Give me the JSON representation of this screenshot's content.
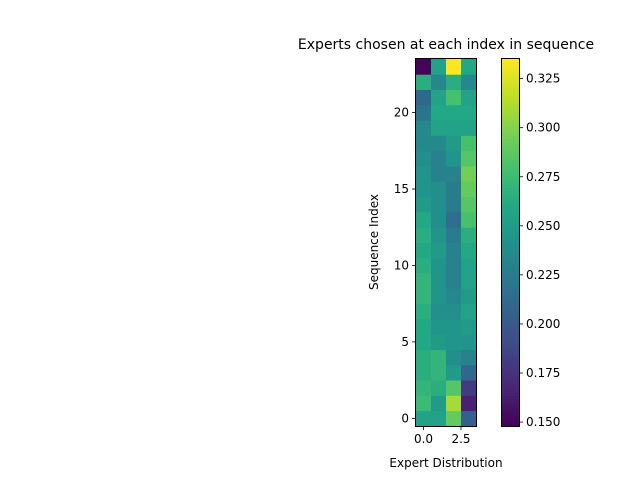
{
  "chart_data": {
    "type": "heatmap",
    "title": "Experts chosen at each index in sequence",
    "xlabel": "Expert Distribution",
    "ylabel": "Sequence Index",
    "colormap": "viridis",
    "vmin": 0.148,
    "vmax": 0.335,
    "xlim": [
      -0.5,
      3.5
    ],
    "ylim": [
      23.5,
      -0.5
    ],
    "x_ticks": [
      0.0,
      2.5
    ],
    "x_tick_labels": [
      "0.0",
      "2.5"
    ],
    "y_ticks": [
      0,
      5,
      10,
      15,
      20
    ],
    "y_tick_labels": [
      "0",
      "5",
      "10",
      "15",
      "20"
    ],
    "colorbar_ticks": [
      0.15,
      0.175,
      0.2,
      0.225,
      0.25,
      0.275,
      0.3,
      0.325
    ],
    "colorbar_tick_labels": [
      "0.150",
      "0.175",
      "0.200",
      "0.225",
      "0.250",
      "0.275",
      "0.300",
      "0.325"
    ],
    "rows": [
      [
        0.255,
        0.255,
        0.29,
        0.205
      ],
      [
        0.275,
        0.25,
        0.31,
        0.165
      ],
      [
        0.27,
        0.265,
        0.285,
        0.18
      ],
      [
        0.265,
        0.27,
        0.25,
        0.21
      ],
      [
        0.265,
        0.27,
        0.24,
        0.23
      ],
      [
        0.26,
        0.25,
        0.245,
        0.245
      ],
      [
        0.26,
        0.245,
        0.245,
        0.25
      ],
      [
        0.265,
        0.24,
        0.24,
        0.255
      ],
      [
        0.27,
        0.245,
        0.235,
        0.25
      ],
      [
        0.27,
        0.245,
        0.23,
        0.255
      ],
      [
        0.265,
        0.245,
        0.23,
        0.255
      ],
      [
        0.26,
        0.25,
        0.23,
        0.26
      ],
      [
        0.265,
        0.245,
        0.225,
        0.265
      ],
      [
        0.26,
        0.24,
        0.215,
        0.28
      ],
      [
        0.25,
        0.24,
        0.225,
        0.285
      ],
      [
        0.245,
        0.24,
        0.225,
        0.29
      ],
      [
        0.245,
        0.23,
        0.23,
        0.295
      ],
      [
        0.24,
        0.23,
        0.245,
        0.285
      ],
      [
        0.235,
        0.235,
        0.25,
        0.28
      ],
      [
        0.235,
        0.255,
        0.255,
        0.255
      ],
      [
        0.22,
        0.26,
        0.26,
        0.26
      ],
      [
        0.21,
        0.255,
        0.28,
        0.255
      ],
      [
        0.265,
        0.235,
        0.265,
        0.235
      ],
      [
        0.15,
        0.255,
        0.335,
        0.26
      ]
    ]
  }
}
